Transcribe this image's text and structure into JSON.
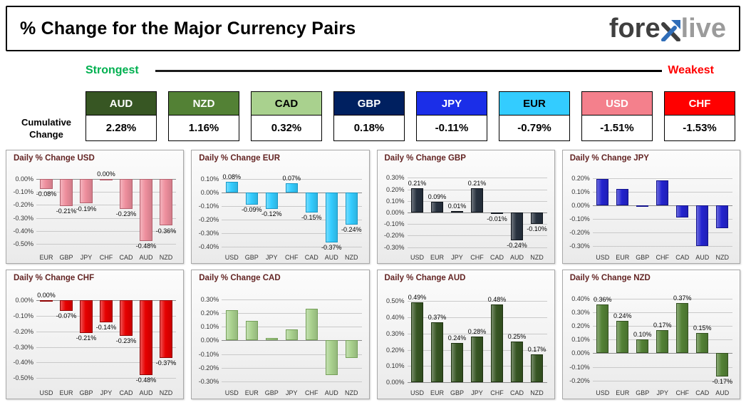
{
  "header": {
    "title": "% Change for the Major Currency Pairs",
    "logo_part1": "fore",
    "logo_part2": "live"
  },
  "spectrum": {
    "strongest_label": "Strongest",
    "weakest_label": "Weakest",
    "strongest_color": "#00b050",
    "weakest_color": "#ff0000"
  },
  "cumulative_label_line1": "Cumulative",
  "cumulative_label_line2": "Change",
  "chart_data": [
    {
      "type": "table",
      "title": "Cumulative Change",
      "columns": [
        "AUD",
        "NZD",
        "CAD",
        "GBP",
        "JPY",
        "EUR",
        "USD",
        "CHF"
      ],
      "values_pct": [
        2.28,
        1.16,
        0.32,
        0.18,
        -0.11,
        -0.79,
        -1.51,
        -1.53
      ],
      "display": [
        "2.28%",
        "1.16%",
        "0.32%",
        "0.18%",
        "-0.11%",
        "-0.79%",
        "-1.51%",
        "-1.53%"
      ],
      "header_colors": [
        "#375623",
        "#538135",
        "#a9d18e",
        "#002060",
        "#1b2ee8",
        "#33ccff",
        "#f4808c",
        "#ff0000"
      ],
      "text_colors": [
        "#ffffff",
        "#ffffff",
        "#000000",
        "#ffffff",
        "#ffffff",
        "#000000",
        "#ffffff",
        "#ffffff"
      ]
    },
    {
      "type": "bar",
      "id": "usd",
      "title": "Daily % Change USD",
      "categories": [
        "EUR",
        "GBP",
        "JPY",
        "CHF",
        "CAD",
        "AUD",
        "NZD"
      ],
      "values": [
        -0.08,
        -0.21,
        -0.19,
        0.0,
        -0.23,
        -0.48,
        -0.36
      ],
      "yticks": [
        0.0,
        -0.1,
        -0.2,
        -0.3,
        -0.4,
        -0.5
      ],
      "ylim": [
        -0.56,
        0.07
      ],
      "bar_color": "#ee8f9d",
      "bar_border": "#b3616e",
      "show_labels": true
    },
    {
      "type": "bar",
      "id": "eur",
      "title": "Daily % Change EUR",
      "categories": [
        "USD",
        "GBP",
        "JPY",
        "CHF",
        "CAD",
        "AUD",
        "NZD"
      ],
      "values": [
        0.08,
        -0.09,
        -0.12,
        0.07,
        -0.15,
        -0.37,
        -0.24
      ],
      "yticks": [
        0.1,
        0.0,
        -0.1,
        -0.2,
        -0.3,
        -0.4
      ],
      "ylim": [
        -0.44,
        0.17
      ],
      "bar_color": "#33ccff",
      "bar_border": "#1898c6",
      "show_labels": true
    },
    {
      "type": "bar",
      "id": "gbp",
      "title": "Daily % Change GBP",
      "categories": [
        "USD",
        "EUR",
        "JPY",
        "CHF",
        "CAD",
        "AUD",
        "NZD"
      ],
      "values": [
        0.21,
        0.09,
        0.01,
        0.21,
        -0.01,
        -0.24,
        -0.1
      ],
      "yticks": [
        0.3,
        0.2,
        0.1,
        0.0,
        -0.1,
        -0.2,
        -0.3
      ],
      "ylim": [
        -0.34,
        0.37
      ],
      "bar_color": "#28323f",
      "bar_border": "#0f151c",
      "show_labels": true
    },
    {
      "type": "bar",
      "id": "jpy",
      "title": "Daily % Change JPY",
      "categories": [
        "USD",
        "EUR",
        "GBP",
        "CHF",
        "CAD",
        "AUD",
        "NZD"
      ],
      "values": [
        0.19,
        0.12,
        -0.01,
        0.18,
        -0.09,
        -0.3,
        -0.17
      ],
      "yticks": [
        0.2,
        0.1,
        0.0,
        -0.1,
        -0.2,
        -0.3
      ],
      "ylim": [
        -0.34,
        0.26
      ],
      "bar_color": "#2424cf",
      "bar_border": "#12128c",
      "show_labels": false
    },
    {
      "type": "bar",
      "id": "chf",
      "title": "Daily % Change CHF",
      "categories": [
        "USD",
        "EUR",
        "GBP",
        "JPY",
        "CAD",
        "AUD",
        "NZD"
      ],
      "values": [
        0.0,
        -0.07,
        -0.21,
        -0.14,
        -0.23,
        -0.48,
        -0.37
      ],
      "yticks": [
        0.0,
        -0.1,
        -0.2,
        -0.3,
        -0.4,
        -0.5
      ],
      "ylim": [
        -0.56,
        0.07
      ],
      "bar_color": "#e60000",
      "bar_border": "#8f0000",
      "show_labels": true
    },
    {
      "type": "bar",
      "id": "cad",
      "title": "Daily % Change CAD",
      "categories": [
        "USD",
        "EUR",
        "GBP",
        "JPY",
        "CHF",
        "AUD",
        "NZD"
      ],
      "values": [
        0.22,
        0.14,
        0.02,
        0.08,
        0.23,
        -0.25,
        -0.13
      ],
      "yticks": [
        0.3,
        0.2,
        0.1,
        0.0,
        -0.1,
        -0.2,
        -0.3
      ],
      "ylim": [
        -0.34,
        0.37
      ],
      "bar_color": "#a9d18e",
      "bar_border": "#75a058",
      "show_labels": false
    },
    {
      "type": "bar",
      "id": "aud",
      "title": "Daily % Change AUD",
      "categories": [
        "USD",
        "EUR",
        "GBP",
        "JPY",
        "CHF",
        "CAD",
        "NZD"
      ],
      "values": [
        0.49,
        0.37,
        0.24,
        0.28,
        0.48,
        0.25,
        0.17
      ],
      "yticks": [
        0.5,
        0.4,
        0.3,
        0.2,
        0.1,
        0.0
      ],
      "ylim": [
        -0.03,
        0.57
      ],
      "bar_color": "#375623",
      "bar_border": "#1e3310",
      "show_labels": true
    },
    {
      "type": "bar",
      "id": "nzd",
      "title": "Daily % Change NZD",
      "categories": [
        "USD",
        "EUR",
        "GBP",
        "JPY",
        "CHF",
        "CAD",
        "AUD"
      ],
      "values": [
        0.36,
        0.24,
        0.1,
        0.17,
        0.37,
        0.15,
        -0.17
      ],
      "yticks": [
        0.4,
        0.3,
        0.2,
        0.1,
        0.0,
        -0.1,
        -0.2
      ],
      "ylim": [
        -0.25,
        0.47
      ],
      "bar_color": "#538135",
      "bar_border": "#33511f",
      "show_labels": true
    }
  ]
}
